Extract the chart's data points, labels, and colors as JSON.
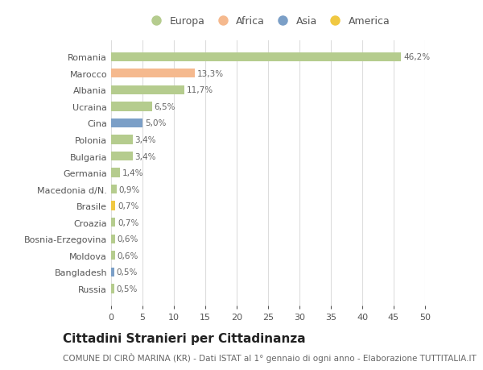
{
  "countries": [
    "Romania",
    "Marocco",
    "Albania",
    "Ucraina",
    "Cina",
    "Polonia",
    "Bulgaria",
    "Germania",
    "Macedonia d/N.",
    "Brasile",
    "Croazia",
    "Bosnia-Erzegovina",
    "Moldova",
    "Bangladesh",
    "Russia"
  ],
  "values": [
    46.2,
    13.3,
    11.7,
    6.5,
    5.0,
    3.4,
    3.4,
    1.4,
    0.9,
    0.7,
    0.7,
    0.6,
    0.6,
    0.5,
    0.5
  ],
  "labels": [
    "46,2%",
    "13,3%",
    "11,7%",
    "6,5%",
    "5,0%",
    "3,4%",
    "3,4%",
    "1,4%",
    "0,9%",
    "0,7%",
    "0,7%",
    "0,6%",
    "0,6%",
    "0,5%",
    "0,5%"
  ],
  "colors": [
    "#b5cc8e",
    "#f5b98e",
    "#b5cc8e",
    "#b5cc8e",
    "#7b9fc7",
    "#b5cc8e",
    "#b5cc8e",
    "#b5cc8e",
    "#b5cc8e",
    "#f0c842",
    "#b5cc8e",
    "#b5cc8e",
    "#b5cc8e",
    "#7b9fc7",
    "#b5cc8e"
  ],
  "legend_labels": [
    "Europa",
    "Africa",
    "Asia",
    "America"
  ],
  "legend_colors": [
    "#b5cc8e",
    "#f5b98e",
    "#7b9fc7",
    "#f0c842"
  ],
  "title": "Cittadini Stranieri per Cittadinanza",
  "subtitle": "COMUNE DI CIRÒ MARINA (KR) - Dati ISTAT al 1° gennaio di ogni anno - Elaborazione TUTTITALIA.IT",
  "xlim": [
    0,
    50
  ],
  "xticks": [
    0,
    5,
    10,
    15,
    20,
    25,
    30,
    35,
    40,
    45,
    50
  ],
  "background_color": "#ffffff",
  "grid_color": "#dddddd",
  "bar_height": 0.55,
  "title_fontsize": 11,
  "subtitle_fontsize": 7.5,
  "tick_fontsize": 8,
  "label_fontsize": 7.5
}
